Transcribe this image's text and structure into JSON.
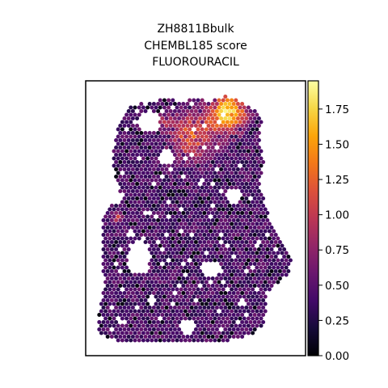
{
  "chart_data": {
    "type": "heatmap",
    "title_lines": [
      "ZH8811Bbulk",
      "CHEMBL185 score",
      "FLUOROURACIL"
    ],
    "colormap": "inferno",
    "colorbar": {
      "range": [
        0.0,
        1.95
      ],
      "ticks": [
        0.0,
        0.25,
        0.5,
        0.75,
        1.0,
        1.25,
        1.5,
        1.75
      ],
      "tick_labels": [
        "0.00",
        "0.25",
        "0.50",
        "0.75",
        "1.00",
        "1.25",
        "1.50",
        "1.75"
      ],
      "position": "right"
    },
    "axes": {
      "show_ticks": false,
      "grid": false,
      "frame": true
    },
    "typical_value": 0.45,
    "hotspots": [
      {
        "label": "top-right high region",
        "value": 1.8
      },
      {
        "label": "upper-middle elevated region",
        "value": 1.35
      },
      {
        "label": "isolated high spot",
        "value": 1.2
      }
    ]
  }
}
